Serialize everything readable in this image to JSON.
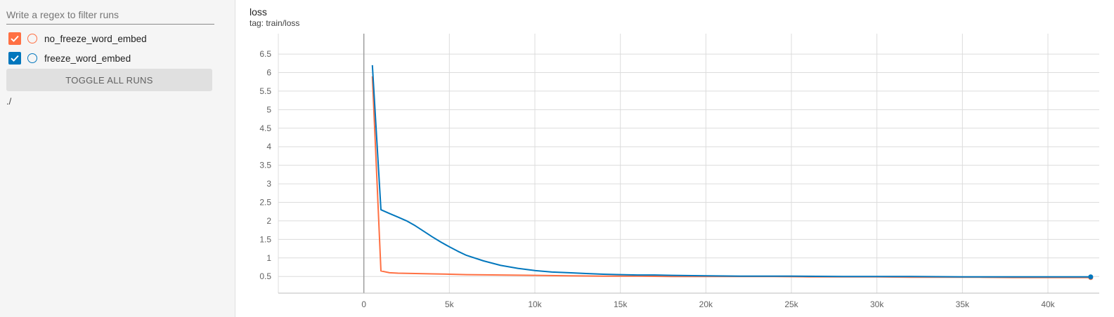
{
  "sidebar": {
    "search_placeholder": "Write a regex to filter runs",
    "runs": [
      {
        "label": "no_freeze_word_embed",
        "color": "#ff7043",
        "checked": true
      },
      {
        "label": "freeze_word_embed",
        "color": "#0277bd",
        "checked": true
      }
    ],
    "toggle_label": "TOGGLE ALL RUNS",
    "path": "./"
  },
  "card": {
    "title": "loss",
    "tag": "tag: train/loss"
  },
  "colors": {
    "no_freeze": "#ff7043",
    "freeze": "#0277bd",
    "grid": "#dcdcdc",
    "zero_axis": "#9e9e9e"
  },
  "chart_data": {
    "type": "line",
    "title": "loss",
    "xlabel": "",
    "ylabel": "",
    "xlim": [
      -5000,
      43000
    ],
    "ylim": [
      0.05,
      7.05
    ],
    "x_ticks": [
      0,
      5000,
      10000,
      15000,
      20000,
      25000,
      30000,
      35000,
      40000
    ],
    "x_tick_labels": [
      "0",
      "5k",
      "10k",
      "15k",
      "20k",
      "25k",
      "30k",
      "35k",
      "40k"
    ],
    "y_ticks": [
      0.5,
      1,
      1.5,
      2,
      2.5,
      3,
      3.5,
      4,
      4.5,
      5,
      5.5,
      6,
      6.5
    ],
    "y_tick_labels": [
      "0.5",
      "1",
      "1.5",
      "2",
      "2.5",
      "3",
      "3.5",
      "4",
      "4.5",
      "5",
      "5.5",
      "6",
      "6.5"
    ],
    "grid": true,
    "series": [
      {
        "name": "no_freeze_word_embed",
        "color": "#ff7043",
        "x": [
          500,
          1000,
          1500,
          2000,
          3000,
          4000,
          5000,
          6000,
          8000,
          10000,
          12000,
          14000,
          16000,
          18000,
          20000,
          22000,
          24000,
          26000,
          28000,
          30000,
          32000,
          34000,
          36000,
          38000,
          40000,
          42500
        ],
        "y": [
          5.9,
          0.65,
          0.6,
          0.59,
          0.58,
          0.57,
          0.56,
          0.55,
          0.54,
          0.53,
          0.52,
          0.51,
          0.51,
          0.5,
          0.5,
          0.5,
          0.5,
          0.49,
          0.49,
          0.49,
          0.48,
          0.48,
          0.48,
          0.47,
          0.47,
          0.47
        ]
      },
      {
        "name": "freeze_word_embed",
        "color": "#0277bd",
        "x": [
          500,
          1000,
          1500,
          2000,
          2500,
          3000,
          3500,
          4000,
          4500,
          5000,
          5500,
          6000,
          7000,
          8000,
          9000,
          10000,
          11000,
          12000,
          13000,
          14000,
          15000,
          16000,
          17000,
          18000,
          20000,
          22000,
          25000,
          28000,
          30000,
          32000,
          35000,
          38000,
          40000,
          42500
        ],
        "y": [
          6.2,
          2.3,
          2.2,
          2.1,
          2.0,
          1.87,
          1.72,
          1.57,
          1.43,
          1.3,
          1.18,
          1.07,
          0.92,
          0.8,
          0.72,
          0.66,
          0.62,
          0.6,
          0.58,
          0.56,
          0.55,
          0.54,
          0.54,
          0.53,
          0.52,
          0.51,
          0.51,
          0.5,
          0.5,
          0.5,
          0.49,
          0.49,
          0.49,
          0.49
        ]
      }
    ]
  }
}
